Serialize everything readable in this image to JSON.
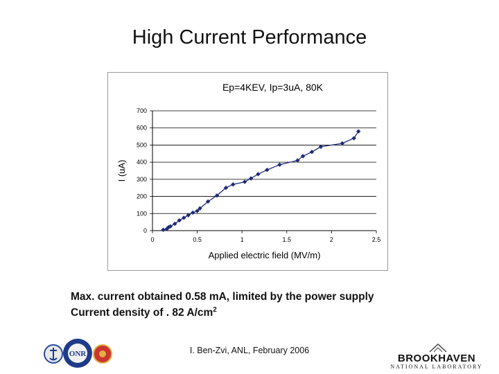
{
  "slide": {
    "title": "High Current Performance",
    "caption_line1": "Max. current obtained 0.58 mA, limited by the power supply",
    "caption_line2_text": "Current density of . 82 A/cm",
    "caption_line2_sup": "2",
    "footer": "I. Ben-Zvi, ANL, February 2006"
  },
  "logos": {
    "left": {
      "text": "ONR",
      "ring_text": "Science & Technology"
    },
    "right": {
      "main": "BROOKHAVEN",
      "sub": "NATIONAL LABORATORY"
    }
  },
  "chart_data": {
    "type": "line",
    "title": "Ep=4KEV, Ip=3uA, 80K",
    "xlabel": "Applied electric field (MV/m)",
    "ylabel": "I (uA)",
    "xlim": [
      0,
      2.5
    ],
    "ylim": [
      0,
      700
    ],
    "x_ticks": [
      "0",
      "0.5",
      "1",
      "1.5",
      "2",
      "2.5"
    ],
    "y_ticks": [
      "0",
      "100",
      "200",
      "300",
      "400",
      "500",
      "600",
      "700"
    ],
    "grid": "horizontal",
    "marker": "diamond",
    "color": "#1f2a78",
    "series": [
      {
        "x": [
          0.12,
          0.16,
          0.18,
          0.2,
          0.25,
          0.3,
          0.35,
          0.4,
          0.45,
          0.5,
          0.53,
          0.62,
          0.72,
          0.82,
          0.9,
          1.03,
          1.1,
          1.18,
          1.28,
          1.42,
          1.62,
          1.68,
          1.78,
          1.88,
          2.12,
          2.25,
          2.3
        ],
        "y": [
          5,
          10,
          20,
          25,
          40,
          60,
          75,
          90,
          105,
          115,
          130,
          170,
          205,
          250,
          270,
          285,
          305,
          330,
          355,
          385,
          410,
          435,
          460,
          490,
          510,
          540,
          580
        ]
      }
    ]
  }
}
